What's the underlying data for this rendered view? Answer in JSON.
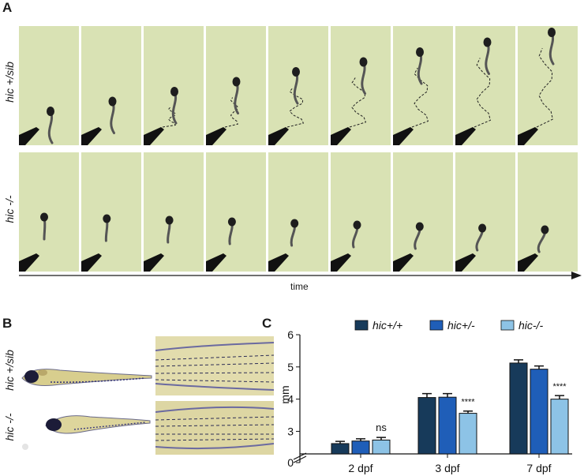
{
  "panels": {
    "a": {
      "letter": "A",
      "row_top_label": "hic +/sib",
      "row_bottom_label": "hic -/-",
      "axis_label": "time"
    },
    "b": {
      "letter": "B",
      "row_top_label": "hic +/sib",
      "row_bottom_label": "hic -/-"
    },
    "c": {
      "letter": "C"
    }
  },
  "colors": {
    "frame_bg": "#d9e2b4",
    "genotype_wt": "#173a5a",
    "genotype_het": "#1f5eb8",
    "genotype_mut": "#8dc3e6"
  },
  "chart_data": {
    "type": "bar",
    "title": "",
    "ylabel": "mm",
    "xlabel": "",
    "categories": [
      "2 dpf",
      "3 dpf",
      "7 dpf"
    ],
    "ylim": [
      0,
      6
    ],
    "yticks": [
      0,
      3,
      4,
      5,
      6
    ],
    "axis_break": true,
    "legend_position": "top",
    "series": [
      {
        "name": "hic+/+",
        "values": [
          2.62,
          4.05,
          5.12
        ],
        "errors": [
          0.07,
          0.12,
          0.1
        ],
        "color": "#173a5a"
      },
      {
        "name": "hic+/-",
        "values": [
          2.7,
          4.06,
          4.93
        ],
        "errors": [
          0.07,
          0.11,
          0.1
        ],
        "color": "#1f5eb8"
      },
      {
        "name": "hic-/-",
        "values": [
          2.73,
          3.56,
          4.0
        ],
        "errors": [
          0.08,
          0.07,
          0.11
        ],
        "color": "#8dc3e6"
      }
    ],
    "annotations": [
      {
        "category": "2 dpf",
        "series": "hic-/-",
        "text": "ns"
      },
      {
        "category": "3 dpf",
        "series": "hic-/-",
        "text": "****"
      },
      {
        "category": "7 dpf",
        "series": "hic-/-",
        "text": "****"
      }
    ]
  }
}
